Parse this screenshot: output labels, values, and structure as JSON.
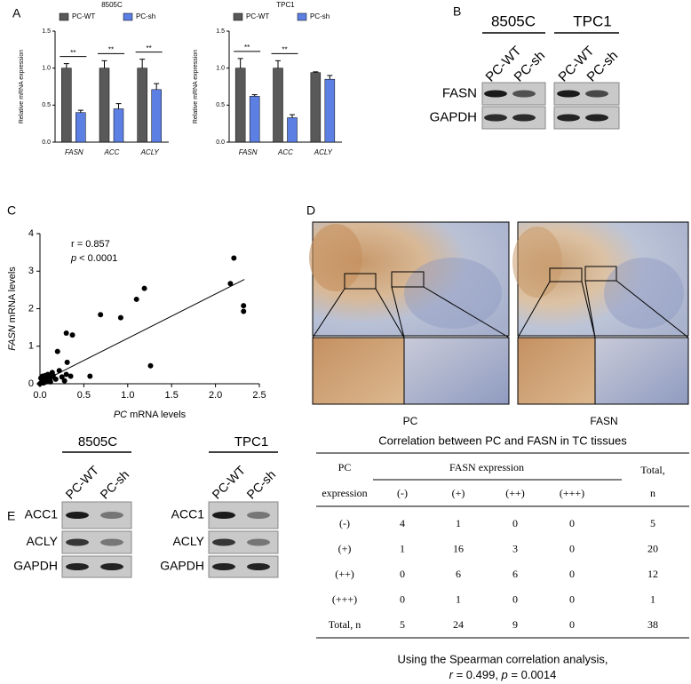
{
  "panel_labels": [
    "A",
    "B",
    "C",
    "D",
    "E"
  ],
  "chart_data": [
    {
      "type": "bar",
      "title": "8505C",
      "ylabel": "Relative mRNA expression",
      "categories": [
        "FASN",
        "ACC",
        "ACLY"
      ],
      "series": [
        {
          "name": "PC-WT",
          "color": "#595959",
          "values": [
            1.0,
            1.0,
            1.0
          ],
          "errors": [
            0.06,
            0.1,
            0.12
          ]
        },
        {
          "name": "PC-sh",
          "color": "#5b7fe3",
          "values": [
            0.4,
            0.45,
            0.71
          ],
          "errors": [
            0.03,
            0.07,
            0.08
          ]
        }
      ],
      "significance": [
        "**",
        "**",
        "**"
      ],
      "ylim": [
        0,
        1.5
      ],
      "yticks": [
        {
          "value": 0,
          "label": "0.0"
        },
        {
          "value": 0.5,
          "label": "0.5"
        },
        {
          "value": 1,
          "label": "1.0"
        },
        {
          "value": 1.5,
          "label": "1.5"
        }
      ]
    },
    {
      "type": "bar",
      "title": "TPC1",
      "ylabel": "Relative mRNA expression",
      "categories": [
        "FASN",
        "ACC",
        "ACLY"
      ],
      "series": [
        {
          "name": "PC-WT",
          "color": "#595959",
          "values": [
            1.0,
            1.0,
            0.94
          ],
          "errors": [
            0.13,
            0.1,
            0.01
          ]
        },
        {
          "name": "PC-sh",
          "color": "#5b7fe3",
          "values": [
            0.62,
            0.33,
            0.85
          ],
          "errors": [
            0.02,
            0.04,
            0.05
          ]
        }
      ],
      "significance": [
        "**",
        "**",
        null
      ],
      "ylim": [
        0,
        1.5
      ],
      "yticks": [
        {
          "value": 0,
          "label": "0.0"
        },
        {
          "value": 0.5,
          "label": "0.5"
        },
        {
          "value": 1,
          "label": "1.0"
        },
        {
          "value": 1.5,
          "label": "1.5"
        }
      ]
    },
    {
      "type": "scatter",
      "xlabel": [
        "PC",
        " mRNA levels"
      ],
      "ylabel": [
        "FASN",
        " mRNA levels"
      ],
      "annotations": [
        [
          "r = 0.857"
        ],
        [
          "p",
          " < 0.0001"
        ]
      ],
      "color": "#000000",
      "x": [
        2.21,
        2.17,
        2.32,
        2.32,
        1.19,
        1.1,
        0.92,
        0.69,
        1.26,
        0.57,
        0.37,
        0.3,
        0.31,
        0.2,
        0.3,
        0.35,
        0.22,
        0.15,
        0.12,
        0.02,
        0.05,
        0.08,
        0.03,
        0.06,
        0.1,
        0.04,
        0.07,
        0.0,
        0.01,
        0.12,
        0.18,
        0.25,
        0.28,
        0.14,
        0.09,
        0.03,
        0.06,
        0.11
      ],
      "y": [
        3.35,
        2.67,
        2.08,
        1.93,
        2.54,
        2.25,
        1.76,
        1.84,
        0.48,
        0.2,
        1.3,
        1.35,
        0.57,
        0.86,
        0.25,
        0.2,
        0.35,
        0.22,
        0.15,
        0.05,
        0.1,
        0.2,
        0.2,
        0.15,
        0.1,
        0.02,
        0.05,
        0.0,
        0.15,
        0.05,
        0.12,
        0.18,
        0.08,
        0.3,
        0.25,
        0.1,
        0.22,
        0.2
      ],
      "fit": {
        "x": [
          0.0,
          2.33
        ],
        "y": [
          0.03,
          2.78
        ]
      },
      "xlim": [
        0,
        2.5
      ],
      "xticks": [
        {
          "value": 0,
          "label": "0.0"
        },
        {
          "value": 0.5,
          "label": "0.5"
        },
        {
          "value": 1,
          "label": "1.0"
        },
        {
          "value": 1.5,
          "label": "1.5"
        },
        {
          "value": 2,
          "label": "2.0"
        },
        {
          "value": 2.5,
          "label": "2.5"
        }
      ],
      "ylim": [
        0,
        4
      ],
      "yticks": [
        0,
        1,
        2,
        3,
        4
      ]
    }
  ],
  "blot_b": {
    "groups": [
      "8505C",
      "TPC1"
    ],
    "lanes": [
      "PC-WT",
      "PC-sh",
      "PC-WT",
      "PC-sh"
    ],
    "rows": [
      "FASN",
      "GAPDH"
    ]
  },
  "ihc": {
    "labels": [
      "PC",
      "FASN"
    ]
  },
  "blot_e": [
    {
      "title": "8505C",
      "lanes": [
        "PC-WT",
        "PC-sh"
      ],
      "rows": [
        "ACC1",
        "ACLY",
        "GAPDH"
      ]
    },
    {
      "title": "TPC1",
      "lanes": [
        "PC-WT",
        "PC-sh"
      ],
      "rows": [
        "ACC1",
        "ACLY",
        "GAPDH"
      ]
    }
  ],
  "table": {
    "title": "Correlation between PC and FASN in TC tissues",
    "pc_header": [
      "PC",
      "expression"
    ],
    "fasn_header": "FASN expression",
    "columns": [
      "(-)",
      "(+)",
      "(++)",
      "(+++)"
    ],
    "total_header": [
      "Total,",
      "n"
    ],
    "rows": [
      [
        "(-)",
        4,
        1,
        0,
        0,
        5
      ],
      [
        "(+)",
        1,
        16,
        3,
        0,
        20
      ],
      [
        "(++)",
        0,
        6,
        6,
        0,
        12
      ],
      [
        "(+++)",
        0,
        1,
        0,
        0,
        1
      ],
      [
        "Total, n",
        5,
        24,
        9,
        0,
        38
      ]
    ]
  },
  "footnote": {
    "line1": "Using the Spearman correlation analysis,",
    "line2": [
      "r",
      " = 0.499, ",
      "p",
      " = 0.0014"
    ]
  }
}
